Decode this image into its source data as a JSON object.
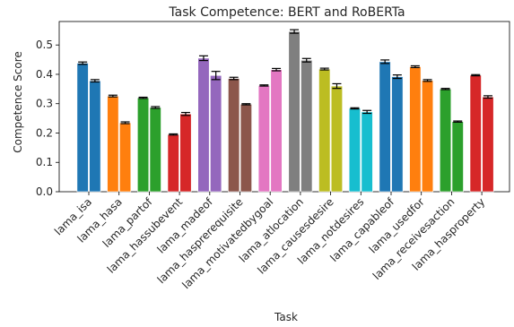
{
  "chart_data": {
    "type": "bar",
    "title": "Task Competence: BERT and RoBERTa",
    "xlabel": "Task",
    "ylabel": "Competence Score",
    "ylim": [
      0,
      0.58
    ],
    "yticks": [
      "0.0",
      "0.1",
      "0.2",
      "0.3",
      "0.4",
      "0.5"
    ],
    "grid": false,
    "categories": [
      "lama_isa",
      "lama_hasa",
      "lama_partof",
      "lama_hassubevent",
      "lama_madeof",
      "lama_hasprerequisite",
      "lama_motivatedbygoal",
      "lama_atlocation",
      "lama_causesdesire",
      "lama_notdesires",
      "lama_capableof",
      "lama_usedfor",
      "lama_receivesaction",
      "lama_hasproperty"
    ],
    "colors": [
      "#1f77b4",
      "#ff7f0e",
      "#2ca02c",
      "#d62728",
      "#9467bd",
      "#8c564b",
      "#e377c2",
      "#7f7f7f",
      "#bcbd22",
      "#17becf",
      "#1f77b4",
      "#ff7f0e",
      "#2ca02c",
      "#d62728"
    ],
    "bars": [
      {
        "values": [
          0.438,
          0.378
        ],
        "errors": [
          0.004,
          0.004
        ]
      },
      {
        "values": [
          0.326,
          0.235
        ],
        "errors": [
          0.003,
          0.003
        ]
      },
      {
        "values": [
          0.32,
          0.287
        ],
        "errors": [
          0.002,
          0.003
        ]
      },
      {
        "values": [
          0.195,
          0.265
        ],
        "errors": [
          0.002,
          0.005
        ]
      },
      {
        "values": [
          0.455,
          0.396
        ],
        "errors": [
          0.008,
          0.014
        ]
      },
      {
        "values": [
          0.386,
          0.298
        ],
        "errors": [
          0.004,
          0.002
        ]
      },
      {
        "values": [
          0.362,
          0.416
        ],
        "errors": [
          0.002,
          0.004
        ]
      },
      {
        "values": [
          0.546,
          0.448
        ],
        "errors": [
          0.006,
          0.006
        ]
      },
      {
        "values": [
          0.418,
          0.36
        ],
        "errors": [
          0.003,
          0.008
        ]
      },
      {
        "values": [
          0.284,
          0.272
        ],
        "errors": [
          0.002,
          0.005
        ]
      },
      {
        "values": [
          0.443,
          0.392
        ],
        "errors": [
          0.006,
          0.006
        ]
      },
      {
        "values": [
          0.426,
          0.379
        ],
        "errors": [
          0.003,
          0.003
        ]
      },
      {
        "values": [
          0.35,
          0.239
        ],
        "errors": [
          0.002,
          0.002
        ]
      },
      {
        "values": [
          0.397,
          0.323
        ],
        "errors": [
          0.002,
          0.004
        ]
      }
    ]
  }
}
